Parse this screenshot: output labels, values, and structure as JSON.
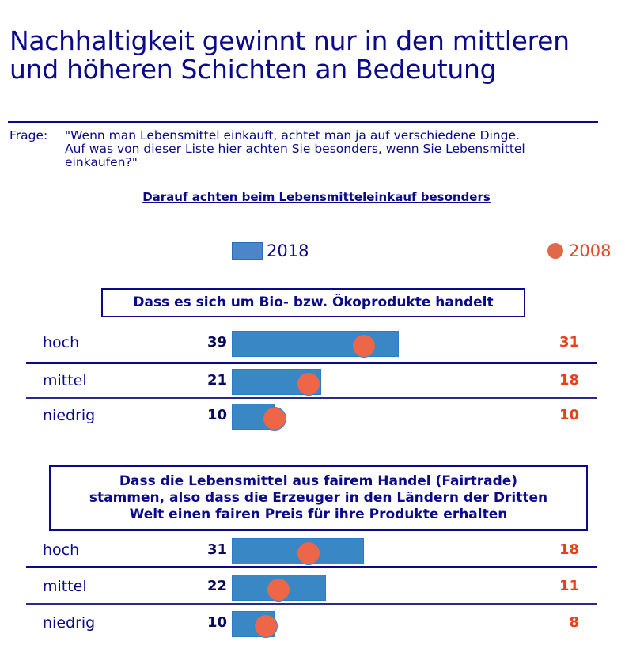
{
  "title": "Nachhaltigkeit gewinnt nur in den mittleren und höheren Schichten an Bedeutung",
  "question": {
    "prefix": "Frage:",
    "line1": "\"Wenn man Lebensmittel einkauft, achtet man ja auf verschiedene Dinge.",
    "line2": "Auf was von dieser Liste hier achten Sie besonders, wenn Sie Lebensmittel",
    "line3": "einkaufen?\""
  },
  "subtitle": "Darauf achten beim Lebensmitteleinkauf besonders",
  "legend": {
    "series_2018": "2018",
    "series_2008": "2008"
  },
  "colors": {
    "bar_2018": "#3a87c6",
    "dot_2008": "#ee6648",
    "text": "#0a0a8a",
    "value_2008": "#e8401c"
  },
  "chart_data": {
    "type": "bar",
    "title": "Darauf achten beim Lebensmitteleinkauf besonders",
    "unit": "%",
    "xlim": [
      0,
      45
    ],
    "legend": [
      "2018",
      "2008"
    ],
    "legend_placement": "top",
    "groups": [
      {
        "heading": "Dass es sich um Bio- bzw. Ökoprodukte handelt",
        "categories": [
          "hoch",
          "mittel",
          "niedrig"
        ],
        "series": [
          {
            "name": "2018",
            "mark": "bar",
            "values": [
              39,
              21,
              10
            ]
          },
          {
            "name": "2008",
            "mark": "dot",
            "values": [
              31,
              18,
              10
            ]
          }
        ]
      },
      {
        "heading_lines": [
          "Dass die Lebensmittel aus fairem Handel (Fairtrade)",
          "stammen, also dass die Erzeuger in den Ländern der Dritten",
          "Welt einen fairen Preis für ihre Produkte erhalten"
        ],
        "categories": [
          "hoch",
          "mittel",
          "niedrig"
        ],
        "series": [
          {
            "name": "2018",
            "mark": "bar",
            "values": [
              31,
              22,
              10
            ]
          },
          {
            "name": "2008",
            "mark": "dot",
            "values": [
              18,
              11,
              8
            ]
          }
        ]
      }
    ]
  }
}
